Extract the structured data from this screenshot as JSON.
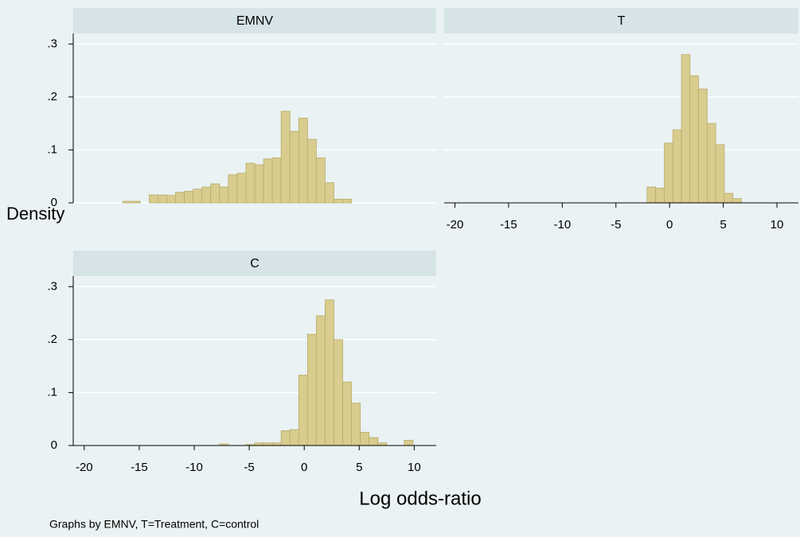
{
  "chart_data": [
    {
      "type": "histogram",
      "title": "EMNV",
      "bins": [
        -16.5,
        -15.7,
        -14.9,
        -14.1,
        -13.3,
        -12.5,
        -11.7,
        -10.9,
        -10.1,
        -9.3,
        -8.5,
        -7.7,
        -6.9,
        -6.1,
        -5.3,
        -4.5,
        -3.7,
        -2.9,
        -2.1,
        -1.3,
        -0.5,
        0.3,
        1.1,
        1.9,
        2.7,
        3.5,
        4.3
      ],
      "values": [
        0.003,
        0.003,
        0,
        0.015,
        0.015,
        0.014,
        0.02,
        0.022,
        0.026,
        0.03,
        0.036,
        0.03,
        0.053,
        0.056,
        0.075,
        0.072,
        0.083,
        0.085,
        0.173,
        0.135,
        0.16,
        0.12,
        0.085,
        0.038,
        0.007,
        0.007
      ],
      "color": "#d8cc8e",
      "edgecolor": "#b8ad6c",
      "xlim": [
        -21,
        12
      ],
      "ylim": [
        0,
        0.32
      ],
      "yticks": [
        0,
        {
          "value": 0.1,
          "label": ".1"
        },
        {
          "value": 0.2,
          "label": ".2"
        },
        {
          "value": 0.3,
          "label": ".3"
        }
      ],
      "grid": true
    },
    {
      "type": "histogram",
      "title": "T",
      "bins": [
        -2.1,
        -1.3,
        -0.5,
        0.3,
        1.1,
        1.9,
        2.7,
        3.5,
        4.3,
        5.1,
        5.9,
        6.7
      ],
      "values": [
        0.03,
        0.028,
        0.113,
        0.138,
        0.28,
        0.24,
        0.215,
        0.15,
        0.11,
        0.018,
        0.008
      ],
      "color": "#d8cc8e",
      "edgecolor": "#b8ad6c",
      "xlim": [
        -21,
        12
      ],
      "ylim": [
        0,
        0.32
      ],
      "xticks": [
        -20,
        -15,
        -10,
        -5,
        0,
        5,
        10
      ],
      "yticks": [
        0,
        0.1,
        0.2,
        0.3
      ],
      "ytick_labels": false,
      "grid": true
    },
    {
      "type": "histogram",
      "title": "C",
      "bins": [
        -7.7,
        -6.9,
        -6.1,
        -5.3,
        -4.5,
        -3.7,
        -2.9,
        -2.1,
        -1.3,
        -0.5,
        0.3,
        1.1,
        1.9,
        2.7,
        3.5,
        4.3,
        5.1,
        5.9,
        6.7,
        7.5,
        8.3,
        9.1,
        9.9
      ],
      "values": [
        0.003,
        0,
        0,
        0.002,
        0.005,
        0.005,
        0.005,
        0.028,
        0.03,
        0.133,
        0.21,
        0.245,
        0.275,
        0.2,
        0.12,
        0.08,
        0.025,
        0.015,
        0.005,
        0,
        0,
        0.01
      ],
      "color": "#d8cc8e",
      "edgecolor": "#b8ad6c",
      "xlim": [
        -21,
        12
      ],
      "ylim": [
        0,
        0.32
      ],
      "xticks": [
        -20,
        -15,
        -10,
        -5,
        0,
        5,
        10
      ],
      "yticks": [
        0,
        {
          "value": 0.1,
          "label": ".1"
        },
        {
          "value": 0.2,
          "label": ".2"
        },
        {
          "value": 0.3,
          "label": ".3"
        }
      ],
      "grid": true
    }
  ],
  "ylabel": "Density",
  "xlabel": "Log odds-ratio",
  "note": "Graphs by EMNV, T=Treatment, C=control"
}
